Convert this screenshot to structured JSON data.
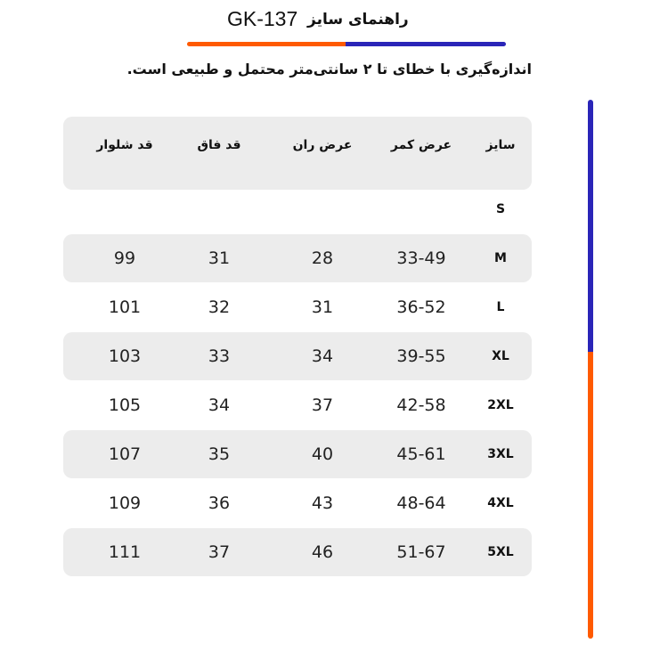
{
  "header": {
    "title": "راهنمای سایز",
    "code": "GK-137",
    "note": "اندازه‌گیری با خطای تا ۲ سانتی‌متر محتمل و طبیعی است."
  },
  "colors": {
    "accent_orange": "#ff5a00",
    "accent_blue": "#2a25b8",
    "row_shade": "#ececec"
  },
  "table": {
    "columns": [
      "سایز",
      "عرض کمر",
      "عرض ران",
      "قد فاق",
      "قد شلوار"
    ],
    "rows": [
      {
        "size": "S",
        "waist": "",
        "thigh": "",
        "rise": "",
        "length": ""
      },
      {
        "size": "M",
        "waist": "33-49",
        "thigh": "28",
        "rise": "31",
        "length": "99"
      },
      {
        "size": "L",
        "waist": "36-52",
        "thigh": "31",
        "rise": "32",
        "length": "101"
      },
      {
        "size": "XL",
        "waist": "39-55",
        "thigh": "34",
        "rise": "33",
        "length": "103"
      },
      {
        "size": "2XL",
        "waist": "42-58",
        "thigh": "37",
        "rise": "34",
        "length": "105"
      },
      {
        "size": "3XL",
        "waist": "45-61",
        "thigh": "40",
        "rise": "35",
        "length": "107"
      },
      {
        "size": "4XL",
        "waist": "48-64",
        "thigh": "43",
        "rise": "36",
        "length": "109"
      },
      {
        "size": "5XL",
        "waist": "51-67",
        "thigh": "46",
        "rise": "37",
        "length": "111"
      }
    ]
  }
}
